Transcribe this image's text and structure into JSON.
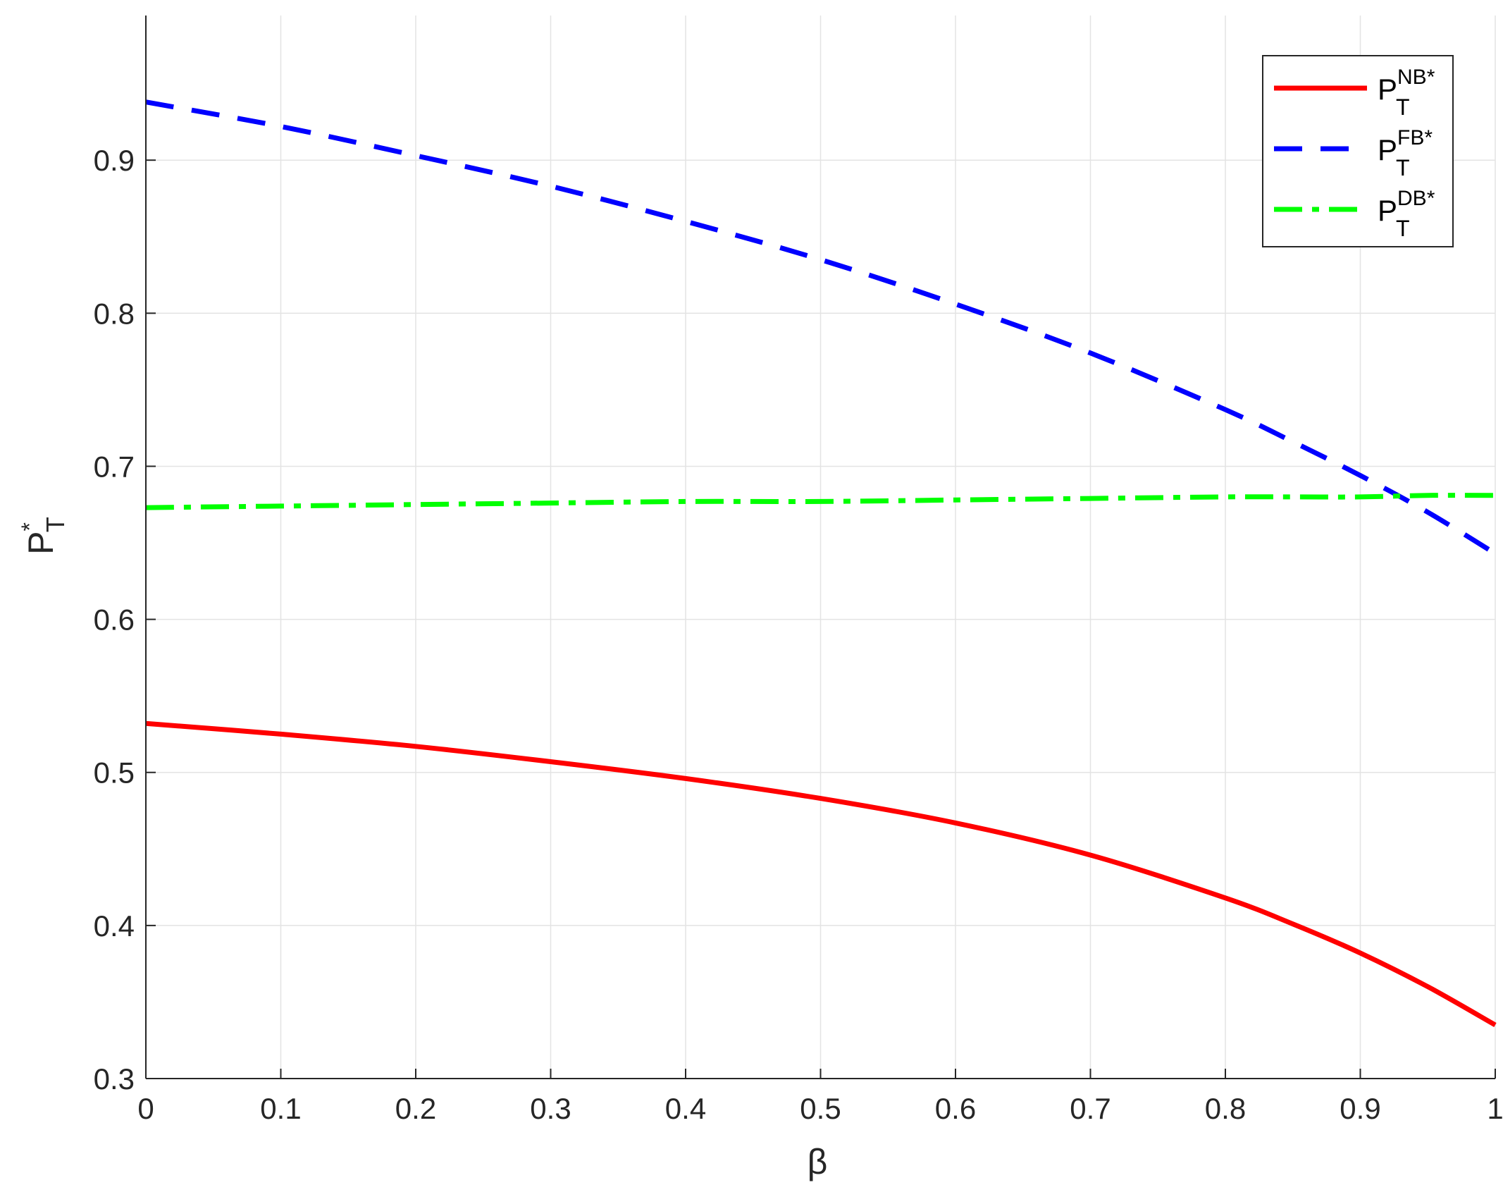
{
  "chart_data": {
    "type": "line",
    "xlabel": {
      "base": "β"
    },
    "ylabel": {
      "base": "P",
      "sup": "*",
      "sub": "T"
    },
    "xlim": [
      0,
      1
    ],
    "ylim": [
      0.3,
      0.9945
    ],
    "xticks": [
      0,
      0.1,
      0.2,
      0.3,
      0.4,
      0.5,
      0.6,
      0.7,
      0.8,
      0.9,
      1
    ],
    "xtick_labels": [
      "0",
      "0.1",
      "0.2",
      "0.3",
      "0.4",
      "0.5",
      "0.6",
      "0.7",
      "0.8",
      "0.9",
      "1"
    ],
    "yticks": [
      0.3,
      0.4,
      0.5,
      0.6,
      0.7,
      0.8,
      0.9
    ],
    "ytick_labels": [
      "0.3",
      "0.4",
      "0.5",
      "0.6",
      "0.7",
      "0.8",
      "0.9"
    ],
    "grid": true,
    "legend_position": "top-right",
    "x": [
      0,
      0.1,
      0.2,
      0.3,
      0.4,
      0.5,
      0.6,
      0.7,
      0.8,
      0.85,
      0.9,
      0.95,
      1
    ],
    "series": [
      {
        "id": "nb",
        "label": {
          "base": "P",
          "sup": "NB*",
          "sub": "T"
        },
        "color": "#ff0000",
        "style": "solid",
        "values": [
          0.532,
          0.525,
          0.517,
          0.507,
          0.496,
          0.483,
          0.467,
          0.446,
          0.418,
          0.401,
          0.382,
          0.36,
          0.335
        ]
      },
      {
        "id": "fb",
        "label": {
          "base": "P",
          "sup": "FB*",
          "sub": "T"
        },
        "color": "#0000ff",
        "style": "dashed",
        "values": [
          0.938,
          0.922,
          0.903,
          0.883,
          0.86,
          0.835,
          0.806,
          0.774,
          0.737,
          0.716,
          0.694,
          0.67,
          0.643
        ]
      },
      {
        "id": "db",
        "label": {
          "base": "P",
          "sup": "DB*",
          "sub": "T"
        },
        "color": "#00ff00",
        "style": "dashdot",
        "values": [
          0.673,
          0.674,
          0.675,
          0.676,
          0.677,
          0.677,
          0.678,
          0.679,
          0.68,
          0.68,
          0.68,
          0.681,
          0.681
        ]
      }
    ]
  }
}
